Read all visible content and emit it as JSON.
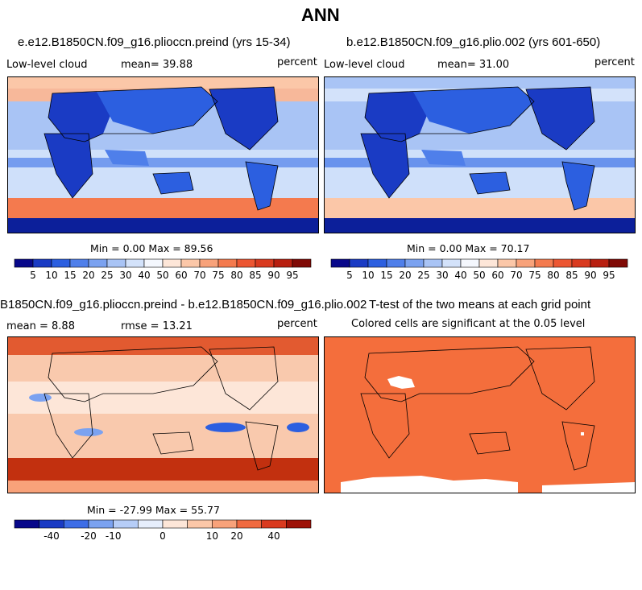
{
  "title": "ANN",
  "panel1": {
    "title": "e.e12.B1850CN.f09_g16.plioccn.preind (yrs 15-34)",
    "variable": "Low-level cloud",
    "mean": "mean=  39.88",
    "units": "percent",
    "minmax": "Min =   0.00 Max =  89.56"
  },
  "panel2": {
    "title": "b.e12.B1850CN.f09_g16.plio.002 (yrs 601-650)",
    "variable": "Low-level cloud",
    "mean": "mean=  31.00",
    "units": "percent",
    "minmax": "Min =   0.00 Max =  70.17"
  },
  "panel3": {
    "title": "B1850CN.f09_g16.plioccn.preind - b.e12.B1850CN.f09_g16.plio.002",
    "mean": "mean =  8.88",
    "rmse": "rmse =  13.21",
    "units": "percent",
    "minmax": "Min = -27.99 Max =  55.77"
  },
  "panel4": {
    "title": "T-test of the two means at each grid point",
    "subtitle": "Colored cells are significant at the 0.05 level"
  },
  "colorbar_abs": {
    "labels": [
      "5",
      "10",
      "15",
      "20",
      "25",
      "30",
      "40",
      "50",
      "60",
      "70",
      "75",
      "80",
      "85",
      "90",
      "95"
    ],
    "colors": [
      "#08088a",
      "#1a3bc4",
      "#2c5fe0",
      "#4f7fea",
      "#7ba2f0",
      "#a9c4f5",
      "#d3e2fa",
      "#f4f7fd",
      "#fde6d8",
      "#fbc7a8",
      "#f8a27a",
      "#f47a4e",
      "#ec5632",
      "#d93a1f",
      "#b81f10",
      "#800a06"
    ]
  },
  "colorbar_diff": {
    "labels": [
      "-40",
      "-20",
      "-10",
      "0",
      "10",
      "20",
      "40"
    ],
    "colors": [
      "#08088a",
      "#1a3bc4",
      "#3d6de6",
      "#7ba2f0",
      "#b6cdf7",
      "#e6eefc",
      "#fde6d8",
      "#fbc7a8",
      "#f8a27a",
      "#f06a40",
      "#d93a1f",
      "#9e1208"
    ]
  },
  "fill_colors": {
    "ocean_low": "#f7b89a",
    "ocean_mid": "#cfe0fa",
    "tropic_band": "#7ba2f0",
    "land_low": "#1a3bc4",
    "southern_ocean": "#e8502d",
    "antarctic": "#0c1f9a",
    "diff_base": "#f9c9ad",
    "diff_strong": "#e25a30",
    "ttest": "#f46e3c"
  }
}
